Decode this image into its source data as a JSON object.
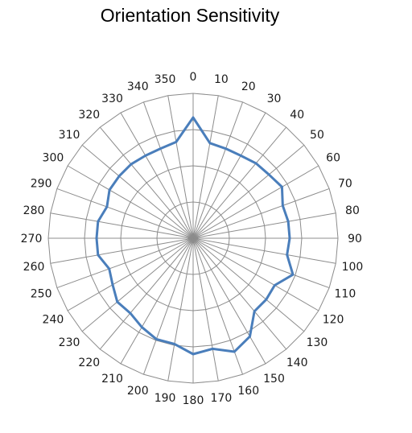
{
  "chart_data": {
    "type": "radar",
    "title": "Orientation Sensitivity",
    "categories": [
      "0",
      "10",
      "20",
      "30",
      "40",
      "50",
      "60",
      "70",
      "80",
      "90",
      "100",
      "110",
      "120",
      "130",
      "140",
      "150",
      "160",
      "170",
      "180",
      "190",
      "200",
      "210",
      "220",
      "230",
      "240",
      "250",
      "260",
      "270",
      "280",
      "290",
      "300",
      "310",
      "320",
      "330",
      "340",
      "350"
    ],
    "series": [
      {
        "values": [
          1.0,
          0.8,
          0.79,
          0.79,
          0.81,
          0.82,
          0.85,
          0.79,
          0.8,
          0.8,
          0.79,
          0.88,
          0.78,
          0.79,
          0.79,
          0.94,
          1.0,
          0.93,
          0.96,
          0.89,
          0.89,
          0.85,
          0.81,
          0.82,
          0.77,
          0.74,
          0.8,
          0.8,
          0.8,
          0.76,
          0.8,
          0.8,
          0.8,
          0.79,
          0.79,
          0.81
        ]
      }
    ],
    "rlim": [
      0,
      1.2
    ],
    "ring_count": 4,
    "grid": true,
    "series_color": "#4a7ebb",
    "grid_color": "#8c8c8c"
  }
}
